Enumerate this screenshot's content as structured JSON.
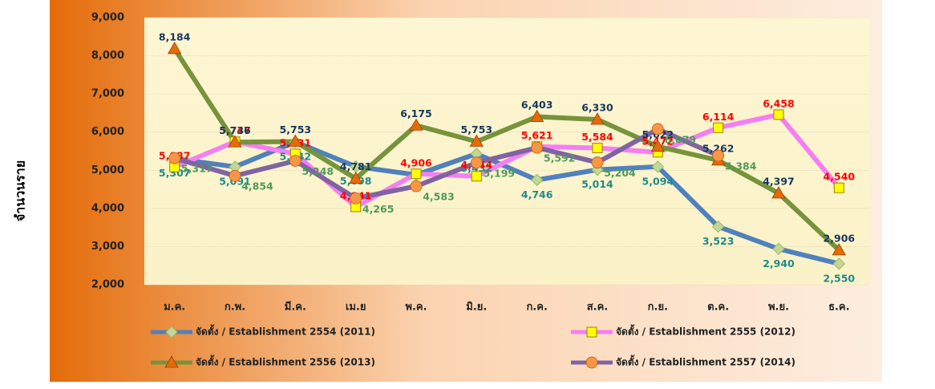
{
  "chart_data": {
    "type": "line",
    "y_label": "จำนวนราย",
    "categories": [
      "ม.ค.",
      "ก.พ.",
      "มี.ค.",
      "เม.ย",
      "พ.ค.",
      "มิ.ย.",
      "ก.ค.",
      "ส.ค.",
      "ก.ย.",
      "ต.ค.",
      "พ.ย.",
      "ธ.ค."
    ],
    "ylim": [
      2000,
      9000
    ],
    "yticks": [
      {
        "value": 2000,
        "label": "2,000"
      },
      {
        "value": 3000,
        "label": "3,000"
      },
      {
        "value": 4000,
        "label": "4,000"
      },
      {
        "value": 5000,
        "label": "5,000"
      },
      {
        "value": 6000,
        "label": "6,000"
      },
      {
        "value": 7000,
        "label": "7,000"
      },
      {
        "value": 8000,
        "label": "8,000"
      },
      {
        "value": 9000,
        "label": "9,000"
      }
    ],
    "series": [
      {
        "name": "จัดตั้ง / Establishment 2554 (2011)",
        "color": "#4f81bd",
        "marker": "diamond",
        "marker_color": "#c3d69b",
        "label_color": "#1f8a8a",
        "values": [
          5307,
          5091,
          5742,
          5098,
          4880,
          5432,
          4746,
          5014,
          5094,
          3523,
          2940,
          2550
        ],
        "value_labels": [
          "5,307",
          "5,091",
          "5,742",
          "5,098",
          null,
          "5,432",
          "4,746",
          "5,014",
          "5,094",
          "3,523",
          "2,940",
          "2,550"
        ]
      },
      {
        "name": "จัดตั้ง / Establishment 2555 (2012)",
        "color": "#f47ff2",
        "marker": "square",
        "marker_color": "#ffff00",
        "label_color": "#ff0000",
        "values": [
          5087,
          5747,
          5431,
          4041,
          4906,
          4844,
          5621,
          5584,
          5472,
          6114,
          6458,
          4540
        ],
        "value_labels": [
          "5,087",
          "5,747",
          "5,431",
          "4,041",
          "4,906",
          "4,844",
          "5,621",
          "5,584",
          "5,472",
          "6,114",
          "6,458",
          "4,540"
        ]
      },
      {
        "name": "จัดตั้ง / Establishment 2556 (2013)",
        "color": "#77933c",
        "marker": "triangle",
        "marker_color": "#e36c09",
        "label_color": "#17375e",
        "values": [
          8184,
          5736,
          5753,
          4781,
          6175,
          5753,
          6403,
          6330,
          5622,
          5262,
          4397,
          2906
        ],
        "value_labels": [
          "8,184",
          "5,736",
          "5,753",
          "4,781",
          "6,175",
          "5,753",
          "6,403",
          "6,330",
          "5,622",
          "5,262",
          "4,397",
          "2,906"
        ]
      },
      {
        "name": "จัดตั้ง / Establishment 2557 (2014)",
        "color": "#8064a2",
        "marker": "circle",
        "marker_color": "#f79646",
        "label_color": "#4e9a5a",
        "values": [
          5317,
          4854,
          5248,
          4265,
          4583,
          5199,
          5592,
          5204,
          6079,
          5384,
          null,
          null
        ],
        "value_labels": [
          "5,317",
          "4,854",
          "5,248",
          "4,265",
          "4,583",
          "5,199",
          "5,592",
          "5,204",
          "6,079",
          "5,384",
          null,
          null
        ]
      }
    ]
  }
}
